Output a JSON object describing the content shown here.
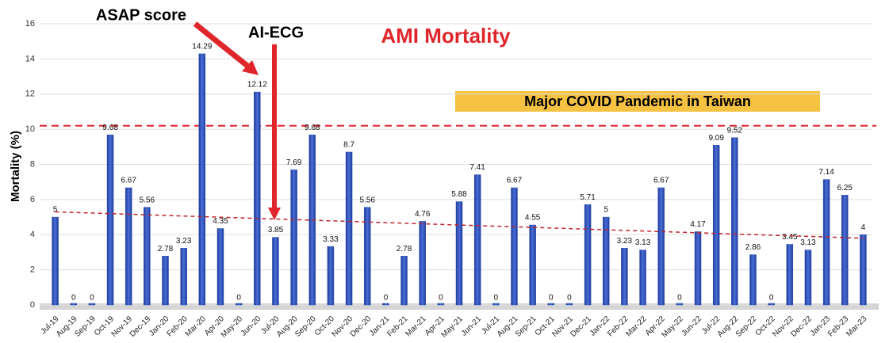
{
  "chart_data": {
    "type": "bar",
    "title": "AMI Mortality",
    "y_label": "Mortality (%)",
    "annotations": [
      "ASAP score",
      "AI-ECG",
      "Major COVID Pandemic in Taiwan"
    ],
    "categories": [
      "Jul-19",
      "Aug-19",
      "Sep-19",
      "Oct-19",
      "Nov-19",
      "Dec-19",
      "Jan-20",
      "Feb-20",
      "Mar-20",
      "Apr-20",
      "May-20",
      "Jun-20",
      "Jul-20",
      "Aug-20",
      "Sep-20",
      "Oct-20",
      "Nov-20",
      "Dec-20",
      "Jan-21",
      "Feb-21",
      "Mar-21",
      "Apr-21",
      "May-21",
      "Jun-21",
      "Jul-21",
      "Aug-21",
      "Sep-21",
      "Oct-21",
      "Nov-21",
      "Dec-21",
      "Jan-22",
      "Feb-22",
      "Mar-22",
      "Apr-22",
      "May-22",
      "Jun-22",
      "Jul-22",
      "Aug-22",
      "Sep-22",
      "Oct-22",
      "Nov-22",
      "Dec-22",
      "Jan-23",
      "Feb-23",
      "Mar-23"
    ],
    "values": [
      5,
      0,
      0,
      9.68,
      6.67,
      5.56,
      2.78,
      3.23,
      14.29,
      4.35,
      0,
      12.12,
      3.85,
      7.69,
      9.68,
      3.33,
      8.7,
      5.56,
      0,
      2.78,
      4.76,
      0,
      5.88,
      7.41,
      0,
      6.67,
      4.55,
      0,
      0,
      5.71,
      5,
      3.23,
      3.13,
      6.67,
      0,
      4.17,
      9.09,
      9.52,
      2.86,
      0,
      3.45,
      3.13,
      7.14,
      6.25,
      4
    ],
    "color": "#2f4fb5",
    "reference_line": 10.2,
    "trend_line": [
      5.3,
      3.8
    ],
    "ylim": [
      0,
      16
    ],
    "yticks": [
      0,
      2,
      4,
      6,
      8,
      10,
      12,
      14,
      16
    ],
    "grid": true
  }
}
